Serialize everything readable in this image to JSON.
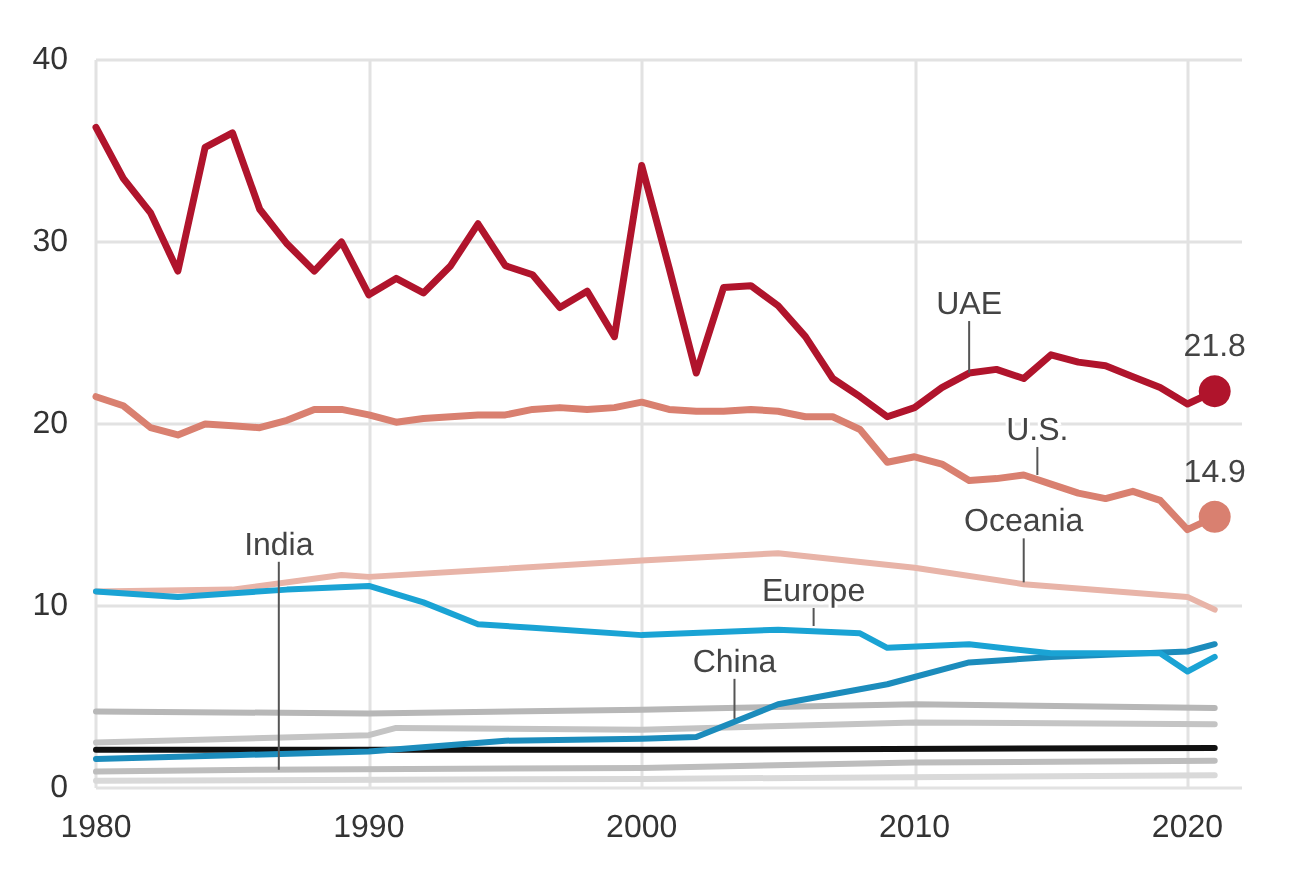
{
  "chart_data": {
    "type": "line",
    "x": [
      1980,
      1981,
      1982,
      1983,
      1984,
      1985,
      1986,
      1987,
      1988,
      1989,
      1990,
      1991,
      1992,
      1993,
      1994,
      1995,
      1996,
      1997,
      1998,
      1999,
      2000,
      2001,
      2002,
      2003,
      2004,
      2005,
      2006,
      2007,
      2008,
      2009,
      2010,
      2011,
      2012,
      2013,
      2014,
      2015,
      2016,
      2017,
      2018,
      2019,
      2020,
      2021
    ],
    "series": [
      {
        "color": "#b7b7b7",
        "x": [
          1980,
          1990,
          2000,
          2010,
          2021
        ],
        "values": [
          4.2,
          4.1,
          4.3,
          4.6,
          4.4
        ]
      },
      {
        "color": "#c4c4c4",
        "x": [
          1980,
          1990,
          1991,
          2000,
          2010,
          2021
        ],
        "values": [
          2.5,
          2.9,
          3.3,
          3.2,
          3.6,
          3.5
        ]
      },
      {
        "color": "#bdbdbd",
        "x": [
          1980,
          1986,
          2000,
          2010,
          2021
        ],
        "values": [
          0.9,
          1.0,
          1.1,
          1.4,
          1.5
        ]
      },
      {
        "color": "#d9d9d9",
        "x": [
          1980,
          2000,
          2021
        ],
        "values": [
          0.4,
          0.5,
          0.7
        ]
      },
      {
        "color": "#111111",
        "x": [
          1980,
          2000,
          2021
        ],
        "values": [
          2.1,
          2.1,
          2.2
        ]
      },
      {
        "color": "#e8b4a8",
        "x": [
          1980,
          1985,
          1989,
          1990,
          2000,
          2005,
          2010,
          2014,
          2020,
          2021
        ],
        "values": [
          10.8,
          10.9,
          11.7,
          11.6,
          12.5,
          12.9,
          12.1,
          11.2,
          10.5,
          9.8
        ]
      },
      {
        "color": "#1c8cbc",
        "x": [
          1980,
          1985,
          1990,
          1995,
          2000,
          2002,
          2005,
          2009,
          2012,
          2015,
          2020,
          2021
        ],
        "values": [
          1.6,
          1.8,
          2.0,
          2.6,
          2.7,
          2.8,
          4.6,
          5.7,
          6.9,
          7.2,
          7.5,
          7.9
        ]
      },
      {
        "color": "#1aa3d4",
        "x": [
          1980,
          1983,
          1987,
          1990,
          1992,
          1994,
          1996,
          2000,
          2005,
          2008,
          2009,
          2012,
          2015,
          2019,
          2020,
          2021
        ],
        "values": [
          10.8,
          10.5,
          10.9,
          11.1,
          10.2,
          9.0,
          8.8,
          8.4,
          8.7,
          8.5,
          7.7,
          7.9,
          7.4,
          7.4,
          6.4,
          7.2
        ]
      },
      {
        "color": "#d98070",
        "values": [
          21.5,
          21.0,
          19.8,
          19.4,
          20.0,
          19.9,
          19.8,
          20.2,
          20.8,
          20.8,
          20.5,
          20.1,
          20.3,
          20.4,
          20.5,
          20.5,
          20.8,
          20.9,
          20.8,
          20.9,
          21.2,
          20.8,
          20.7,
          20.7,
          20.8,
          20.7,
          20.4,
          20.4,
          19.7,
          17.9,
          18.2,
          17.8,
          16.9,
          17.0,
          17.2,
          16.7,
          16.2,
          15.9,
          16.3,
          15.8,
          14.2,
          14.9
        ],
        "value_labels": [
          null,
          null,
          null,
          null,
          null,
          null,
          null,
          null,
          null,
          null,
          null,
          null,
          null,
          null,
          null,
          null,
          null,
          null,
          null,
          null,
          null,
          null,
          null,
          null,
          null,
          null,
          null,
          null,
          null,
          null,
          null,
          null,
          null,
          null,
          null,
          null,
          null,
          null,
          null,
          null,
          null,
          "14.9"
        ]
      },
      {
        "color": "#b0142c",
        "values": [
          36.3,
          33.5,
          31.6,
          28.4,
          35.2,
          36.0,
          31.8,
          29.9,
          28.4,
          30.0,
          27.1,
          28.0,
          27.2,
          28.7,
          31.0,
          28.7,
          28.2,
          26.4,
          27.3,
          24.8,
          34.2,
          28.6,
          22.8,
          27.5,
          27.6,
          26.5,
          24.8,
          22.5,
          21.5,
          20.4,
          20.9,
          22.0,
          22.8,
          23.0,
          22.5,
          23.8,
          23.4,
          23.2,
          22.6,
          22.0,
          21.1,
          21.8
        ],
        "value_labels": [
          null,
          null,
          null,
          null,
          null,
          null,
          null,
          null,
          null,
          null,
          null,
          null,
          null,
          null,
          null,
          null,
          null,
          null,
          null,
          null,
          null,
          null,
          null,
          null,
          null,
          null,
          null,
          null,
          null,
          null,
          null,
          null,
          null,
          null,
          null,
          null,
          null,
          null,
          null,
          null,
          null,
          "21.8"
        ]
      }
    ],
    "annotations": [
      {
        "text": "UAE",
        "x": 2012,
        "y": 22.8
      },
      {
        "text": "U.S.",
        "x": 2014.5,
        "y": 17.2
      },
      {
        "text": "Oceania",
        "x": 2014,
        "y": 11.3
      },
      {
        "text": "Europe",
        "x": 2006.3,
        "y": 8.9
      },
      {
        "text": "China",
        "x": 2003.4,
        "y": 3.8
      },
      {
        "text": "India",
        "x": 1986.7,
        "y": 1.0
      }
    ],
    "xlim": [
      1980,
      2022
    ],
    "xticks": [
      1980,
      1990,
      2000,
      2010,
      2020
    ],
    "ylim": [
      0,
      40
    ],
    "yticks": [
      0,
      10,
      20,
      30,
      40
    ],
    "grid": true
  }
}
